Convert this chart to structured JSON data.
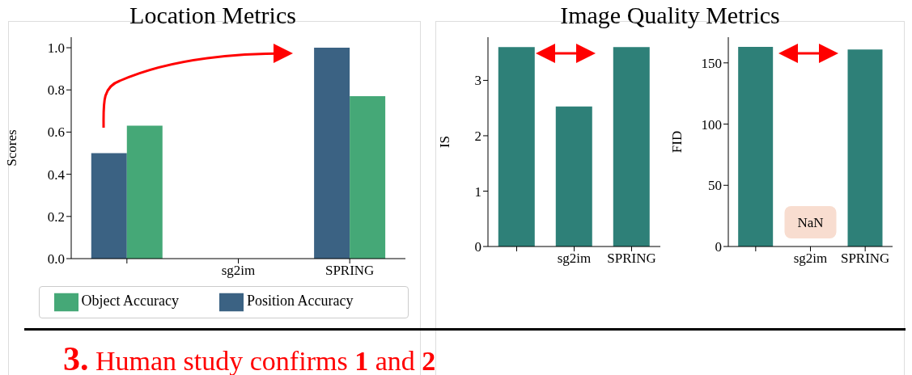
{
  "chart_data": [
    {
      "type": "bar",
      "title": "Location Metrics",
      "ylabel": "Scores",
      "categories": [
        null,
        "sg2im",
        "SPRING"
      ],
      "series": [
        {
          "name": "Position Accuracy",
          "color": "#3b6283",
          "values": [
            0.5,
            null,
            1.0
          ]
        },
        {
          "name": "Object Accuracy",
          "color": "#45a877",
          "values": [
            0.63,
            null,
            0.77
          ]
        }
      ],
      "ylim": [
        0,
        1.05
      ],
      "yticks": [
        {
          "value": 0,
          "label": "0.0"
        },
        {
          "value": 0.2,
          "label": "0.2"
        },
        {
          "value": 0.4,
          "label": "0.4"
        },
        {
          "value": 0.6,
          "label": "0.6"
        },
        {
          "value": 0.8,
          "label": "0.8"
        },
        {
          "value": 1,
          "label": "1.0"
        }
      ],
      "grid": false,
      "legend": "bottom",
      "annotations": [
        "3. Human study confirms 1 and 2"
      ]
    },
    {
      "type": "bar",
      "title": "Image Quality Metrics",
      "ylabel": "IS",
      "categories": [
        null,
        "sg2im",
        "SPRING"
      ],
      "series": [
        {
          "color": "#2e8078",
          "values": [
            3.6,
            2.53,
            3.6
          ]
        }
      ],
      "ylim": [
        0,
        3.78
      ],
      "yticks": [
        0,
        1,
        2,
        3
      ],
      "grid": false
    },
    {
      "type": "bar",
      "ylabel": "FID",
      "categories": [
        null,
        "sg2im",
        "SPRING"
      ],
      "series": [
        {
          "color": "#2e8078",
          "values": [
            163,
            null,
            161
          ],
          "value_labels": [
            null,
            "NaN",
            null
          ]
        }
      ],
      "ylim": [
        0,
        171
      ],
      "yticks": [
        0,
        50,
        100,
        150
      ],
      "grid": false
    }
  ]
}
